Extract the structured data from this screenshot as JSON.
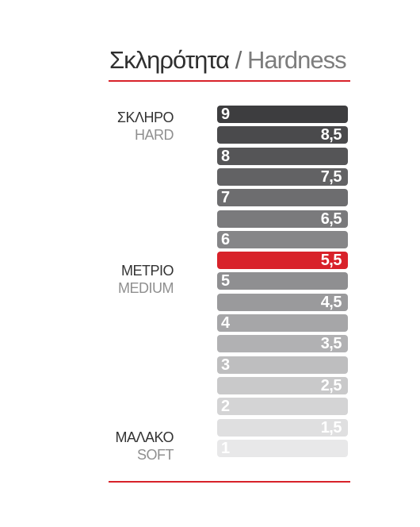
{
  "title": {
    "greek": "Σκληρότητα",
    "separator": "/",
    "english": "Hardness"
  },
  "labels": {
    "hard": {
      "greek": "ΣΚΛΗΡΟ",
      "english": "HARD"
    },
    "medium": {
      "greek": "ΜΕΤΡΙΟ",
      "english": "MEDIUM"
    },
    "soft": {
      "greek": "ΜΑΛΑΚΟ",
      "english": "SOFT"
    }
  },
  "accent_color": "#d8222a",
  "scale": [
    {
      "value": "9",
      "color": "#3d3d3f"
    },
    {
      "value": "8,5",
      "color": "#4a4a4c"
    },
    {
      "value": "8",
      "color": "#555557"
    },
    {
      "value": "7,5",
      "color": "#626264"
    },
    {
      "value": "7",
      "color": "#6d6d6f"
    },
    {
      "value": "6,5",
      "color": "#7a7a7c"
    },
    {
      "value": "6",
      "color": "#868688"
    },
    {
      "value": "5,5",
      "color": "#d8222a",
      "highlight": true
    },
    {
      "value": "5",
      "color": "#8f8f91"
    },
    {
      "value": "4,5",
      "color": "#9a9a9c"
    },
    {
      "value": "4",
      "color": "#a6a6a8"
    },
    {
      "value": "3,5",
      "color": "#b1b1b3"
    },
    {
      "value": "3",
      "color": "#bebebf"
    },
    {
      "value": "2,5",
      "color": "#c9c9ca"
    },
    {
      "value": "2",
      "color": "#d4d4d5"
    },
    {
      "value": "1,5",
      "color": "#dfdfe0"
    },
    {
      "value": "1",
      "color": "#e8e8e9"
    }
  ]
}
